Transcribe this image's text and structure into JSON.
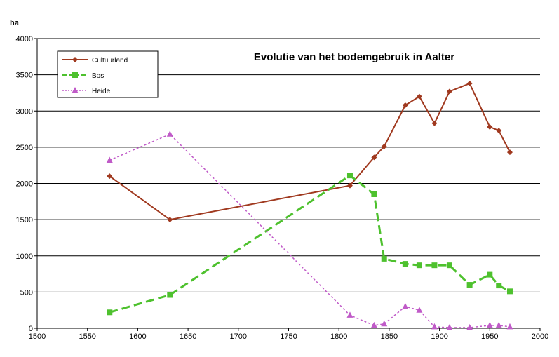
{
  "chart_data": {
    "type": "line",
    "title": "Evolutie van het bodemgebruik in Aalter",
    "ylabel": "ha",
    "xlabel": "",
    "xlim": [
      1500,
      2000
    ],
    "ylim": [
      0,
      4000
    ],
    "x_ticks": [
      1500,
      1550,
      1600,
      1650,
      1700,
      1750,
      1800,
      1850,
      1900,
      1950,
      2000
    ],
    "y_ticks": [
      0,
      500,
      1000,
      1500,
      2000,
      2500,
      3000,
      3500,
      4000
    ],
    "grid": "horizontal",
    "legend_position": "top-left",
    "series": [
      {
        "name": "Cultuurland",
        "color": "#a0391f",
        "marker": "diamond",
        "line_style": "solid",
        "x": [
          1572,
          1632,
          1811,
          1835,
          1845,
          1866,
          1880,
          1895,
          1910,
          1930,
          1950,
          1959,
          1970
        ],
        "y": [
          2100,
          1500,
          1970,
          2360,
          2510,
          3080,
          3200,
          2830,
          3270,
          3380,
          2780,
          2730,
          2430
        ]
      },
      {
        "name": "Bos",
        "color": "#4ec12e",
        "marker": "square",
        "line_style": "dashed",
        "x": [
          1572,
          1632,
          1811,
          1835,
          1845,
          1866,
          1880,
          1895,
          1910,
          1930,
          1950,
          1959,
          1970
        ],
        "y": [
          220,
          460,
          2110,
          1850,
          960,
          890,
          870,
          870,
          870,
          600,
          740,
          590,
          510
        ]
      },
      {
        "name": "Heide",
        "color": "#c05ac8",
        "marker": "triangle",
        "line_style": "dotted",
        "x": [
          1572,
          1632,
          1811,
          1835,
          1845,
          1866,
          1880,
          1895,
          1910,
          1930,
          1950,
          1959,
          1970
        ],
        "y": [
          2320,
          2680,
          180,
          40,
          60,
          300,
          250,
          20,
          10,
          10,
          40,
          40,
          20
        ]
      }
    ]
  }
}
